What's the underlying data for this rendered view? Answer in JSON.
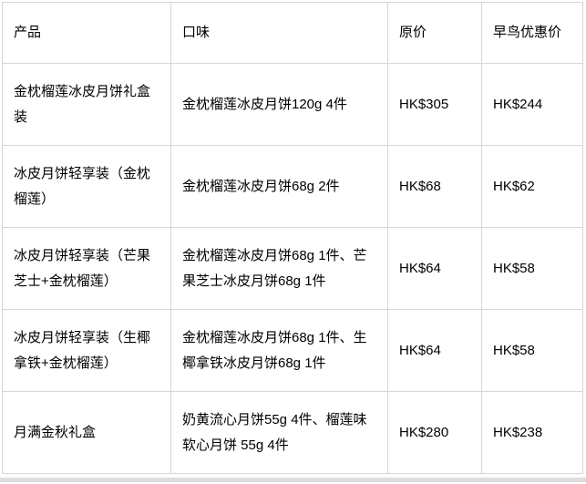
{
  "table": {
    "columns": [
      {
        "key": "product",
        "label": "产品"
      },
      {
        "key": "flavor",
        "label": "口味"
      },
      {
        "key": "original_price",
        "label": "原价"
      },
      {
        "key": "early_bird_price",
        "label": "早鸟优惠价"
      }
    ],
    "rows": [
      {
        "product": "金枕榴莲冰皮月饼礼盒装",
        "flavor": "金枕榴莲冰皮月饼120g 4件",
        "original_price": "HK$305",
        "early_bird_price": "HK$244"
      },
      {
        "product": "冰皮月饼轻享装（金枕榴莲）",
        "flavor": "金枕榴莲冰皮月饼68g 2件",
        "original_price": "HK$68",
        "early_bird_price": "HK$62"
      },
      {
        "product": "冰皮月饼轻享装（芒果芝士+金枕榴莲）",
        "flavor": "金枕榴莲冰皮月饼68g 1件、芒果芝士冰皮月饼68g 1件",
        "original_price": "HK$64",
        "early_bird_price": "HK$58"
      },
      {
        "product": "冰皮月饼轻享装（生椰拿铁+金枕榴莲）",
        "flavor": "金枕榴莲冰皮月饼68g 1件、生椰拿铁冰皮月饼68g 1件",
        "original_price": "HK$64",
        "early_bird_price": "HK$58"
      },
      {
        "product": "月满金秋礼盒",
        "flavor": "奶黄流心月饼55g 4件、榴莲味软心月饼 55g 4件",
        "original_price": "HK$280",
        "early_bird_price": "HK$238"
      }
    ]
  },
  "colors": {
    "border": "#d6d6d6",
    "text": "#000000",
    "background": "#ffffff",
    "scrollbar": "#dddddd"
  }
}
